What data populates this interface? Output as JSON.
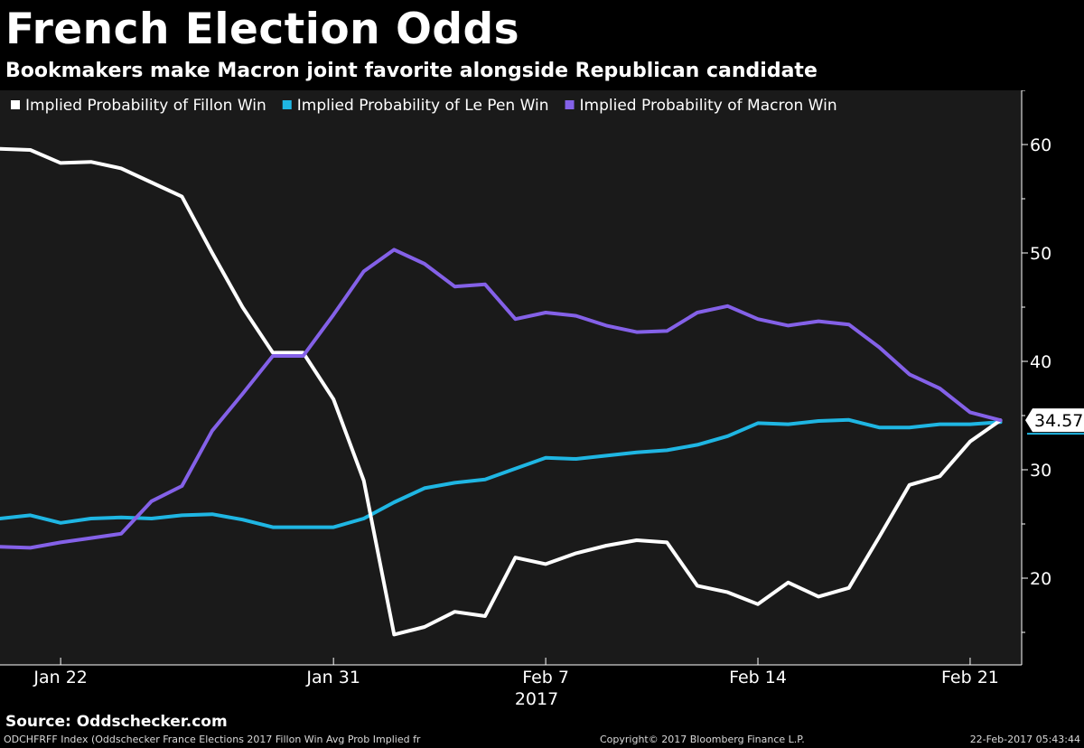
{
  "header": {
    "title": "French Election Odds",
    "subtitle": "Bookmakers make Macron joint favorite alongside Republican candidate"
  },
  "colors": {
    "background": "#000000",
    "plot_background": "#1a1a1a",
    "fillon": "#ffffff",
    "lepen": "#1fb6e3",
    "macron": "#8461e8"
  },
  "chart_data": {
    "type": "line",
    "title": "French Election Odds",
    "subtitle": "Bookmakers make Macron joint favorite alongside Republican candidate",
    "xlabel": "2017",
    "ylabel": "",
    "ylim": [
      12,
      65
    ],
    "y_ticks": [
      20,
      30,
      40,
      50,
      60
    ],
    "y_tick_labels": [
      "20",
      "30",
      "40",
      "50",
      "60"
    ],
    "y_axis_side": "right",
    "grid": false,
    "legend_position": "top-left",
    "x_ticks": [
      {
        "day": 2,
        "label": "Jan 22"
      },
      {
        "day": 11,
        "label": "Jan 31"
      },
      {
        "day": 18,
        "label": "Feb 7"
      },
      {
        "day": 25,
        "label": "Feb 14"
      },
      {
        "day": 32,
        "label": "Feb 21"
      }
    ],
    "x_day_range": [
      0,
      33.7
    ],
    "x_year_label": "2017",
    "last_value_label": "34.57",
    "series": [
      {
        "name": "Implied Probability of Fillon Win",
        "color": "#ffffff",
        "points": [
          [
            0,
            59.6
          ],
          [
            1,
            59.5
          ],
          [
            2,
            58.3
          ],
          [
            3,
            58.4
          ],
          [
            4,
            57.8
          ],
          [
            5,
            56.5
          ],
          [
            6,
            55.2
          ],
          [
            7,
            50.0
          ],
          [
            8,
            45.0
          ],
          [
            9,
            40.8
          ],
          [
            10,
            40.8
          ],
          [
            11,
            36.5
          ],
          [
            12,
            29.0
          ],
          [
            13,
            14.8
          ],
          [
            14,
            15.5
          ],
          [
            15,
            16.9
          ],
          [
            16,
            16.5
          ],
          [
            17,
            21.9
          ],
          [
            18,
            21.3
          ],
          [
            19,
            22.3
          ],
          [
            20,
            23.0
          ],
          [
            21,
            23.5
          ],
          [
            22,
            23.3
          ],
          [
            23,
            19.3
          ],
          [
            24,
            18.7
          ],
          [
            25,
            17.6
          ],
          [
            26,
            19.6
          ],
          [
            27,
            18.3
          ],
          [
            28,
            19.1
          ],
          [
            29,
            23.8
          ],
          [
            30,
            28.6
          ],
          [
            31,
            29.4
          ],
          [
            32,
            32.6
          ],
          [
            33,
            34.57
          ]
        ]
      },
      {
        "name": "Implied Probability of Le Pen Win",
        "color": "#1fb6e3",
        "points": [
          [
            0,
            25.5
          ],
          [
            1,
            25.8
          ],
          [
            2,
            25.1
          ],
          [
            3,
            25.5
          ],
          [
            4,
            25.6
          ],
          [
            5,
            25.5
          ],
          [
            6,
            25.8
          ],
          [
            7,
            25.9
          ],
          [
            8,
            25.4
          ],
          [
            9,
            24.7
          ],
          [
            10,
            24.7
          ],
          [
            11,
            24.7
          ],
          [
            12,
            25.5
          ],
          [
            13,
            27.0
          ],
          [
            14,
            28.3
          ],
          [
            15,
            28.8
          ],
          [
            16,
            29.1
          ],
          [
            17,
            30.1
          ],
          [
            18,
            31.1
          ],
          [
            19,
            31.0
          ],
          [
            20,
            31.3
          ],
          [
            21,
            31.6
          ],
          [
            22,
            31.8
          ],
          [
            23,
            32.3
          ],
          [
            24,
            33.1
          ],
          [
            25,
            34.3
          ],
          [
            26,
            34.2
          ],
          [
            27,
            34.5
          ],
          [
            28,
            34.6
          ],
          [
            29,
            33.9
          ],
          [
            30,
            33.9
          ],
          [
            31,
            34.2
          ],
          [
            32,
            34.2
          ],
          [
            33,
            34.4
          ]
        ]
      },
      {
        "name": "Implied Probability of Macron Win",
        "color": "#8461e8",
        "points": [
          [
            0,
            22.9
          ],
          [
            1,
            22.8
          ],
          [
            2,
            23.3
          ],
          [
            3,
            23.7
          ],
          [
            4,
            24.1
          ],
          [
            5,
            27.1
          ],
          [
            6,
            28.5
          ],
          [
            7,
            33.6
          ],
          [
            8,
            37.0
          ],
          [
            9,
            40.5
          ],
          [
            10,
            40.5
          ],
          [
            11,
            44.3
          ],
          [
            12,
            48.3
          ],
          [
            13,
            50.3
          ],
          [
            14,
            49.0
          ],
          [
            15,
            46.9
          ],
          [
            16,
            47.1
          ],
          [
            17,
            43.9
          ],
          [
            18,
            44.5
          ],
          [
            19,
            44.2
          ],
          [
            20,
            43.3
          ],
          [
            21,
            42.7
          ],
          [
            22,
            42.8
          ],
          [
            23,
            44.5
          ],
          [
            24,
            45.1
          ],
          [
            25,
            43.9
          ],
          [
            26,
            43.3
          ],
          [
            27,
            43.7
          ],
          [
            28,
            43.4
          ],
          [
            29,
            41.3
          ],
          [
            30,
            38.8
          ],
          [
            31,
            37.5
          ],
          [
            32,
            35.3
          ],
          [
            33,
            34.57
          ]
        ]
      }
    ]
  },
  "footer": {
    "source": "Source: Oddschecker.com",
    "left": "ODCHFRFF Index (Oddschecker France Elections 2017 Fillon Win Avg Prob Implied fr",
    "center": "Copyright© 2017 Bloomberg Finance L.P.",
    "right": "22-Feb-2017 05:43:44"
  }
}
